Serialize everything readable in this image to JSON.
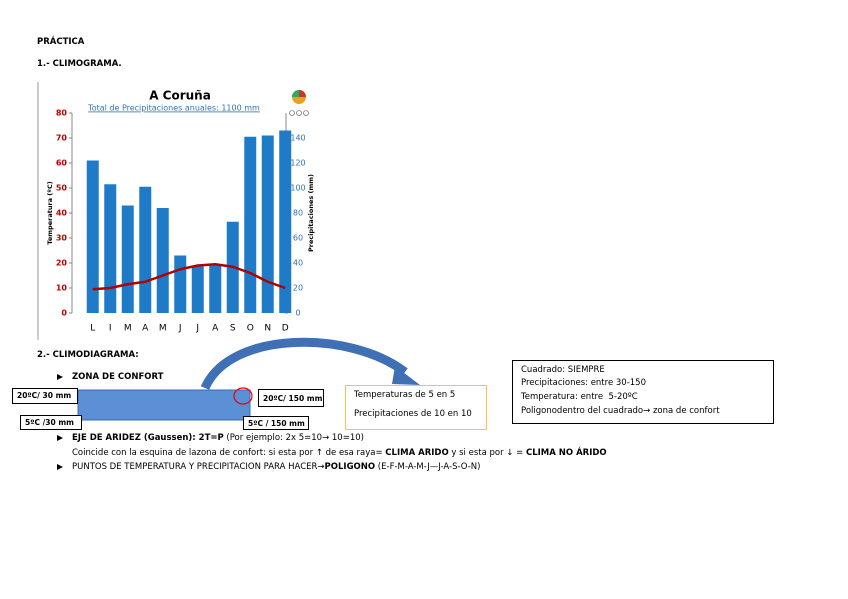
{
  "document": {
    "heading": "PRÁCTICA",
    "section1": "1.- CLIMOGRAMA.",
    "section2": "2.- CLIMODIAGRAMA:",
    "comfort_title": "ZONA DE CONFORT",
    "corners": [
      "20ºC/ 30 mm",
      "5ºC /30 mm",
      "20ºC/ 150 mm",
      "5ºC / 150 mm"
    ],
    "scale_note": [
      "Temperaturas de 5 en 5",
      "Precipitaciones de 10 en 10"
    ],
    "rules_box": [
      "Cuadrado: SIEMPRE",
      "Precipitaciones: entre 30-150",
      "Temperatura: entre  5-20ºC",
      "Poligonodentro del cuadrado→ zona de confort"
    ],
    "aridity": {
      "bold": "EJE DE ARIDEZ (Gaussen): 2T=P",
      "normal": " (Por ejemplo: 2x 5=10→ 10=10)"
    },
    "aridity_note": {
      "a": "Coincide con la esquina de lazona de confort: si esta por ↑ de esa raya= ",
      "b": "CLIMA ARIDO",
      "c": " y si esta por ↓ = ",
      "d": "CLIMA NO ÁRIDO"
    },
    "polygon": {
      "a": "PUNTOS DE TEMPERATURA Y PRECIPITACION PARA HACER→",
      "b": "POLIGONO",
      "c": " (E-F-M-A-M-J—J-A-S-O-N)"
    }
  },
  "chart_data": {
    "type": "bar",
    "title": "A Coruña",
    "subtitle": "Total de Precipitaciones anuales: 1100 mm",
    "y_label": "Temperatura (ºC)",
    "y2_label": "Precipitaciones (mm)",
    "categories": [
      "L",
      "I",
      "M",
      "A",
      "M",
      "J",
      "J",
      "A",
      "S",
      "O",
      "N",
      "D"
    ],
    "series": [
      {
        "name": "Precipitaciones",
        "type": "bar",
        "axis": "y2",
        "color": "#1f7bc8",
        "values": [
          122,
          103,
          86,
          101,
          84,
          46,
          38,
          38,
          73,
          141,
          142,
          146
        ]
      },
      {
        "name": "Temperatura",
        "type": "line",
        "color": "#b00000",
        "values": [
          9.5,
          10,
          11.5,
          12.5,
          15,
          17.5,
          19,
          19.5,
          18.5,
          16,
          12.5,
          10
        ]
      }
    ],
    "ylim": [
      0,
      80
    ],
    "yticks": [
      0,
      10,
      20,
      30,
      40,
      50,
      60,
      70,
      80
    ],
    "y2lim": [
      0,
      160
    ],
    "y2ticks": [
      0,
      20,
      40,
      60,
      80,
      100,
      120,
      140
    ]
  }
}
